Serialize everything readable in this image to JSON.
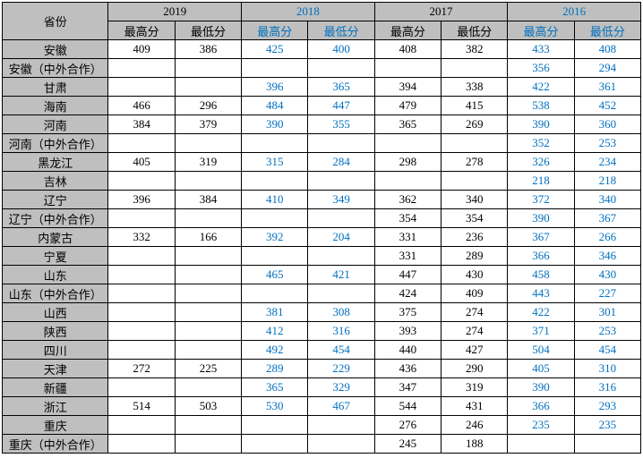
{
  "headers": {
    "province": "省份",
    "years": [
      "2019",
      "2018",
      "2017",
      "2016"
    ],
    "sub": [
      "最高分",
      "最低分"
    ],
    "blue_years": [
      1,
      3
    ]
  },
  "rows": [
    {
      "label": "安徽",
      "cells": [
        "409",
        "386",
        "425",
        "400",
        "408",
        "382",
        "433",
        "408"
      ]
    },
    {
      "label": "安徽（中外合作）",
      "cells": [
        "",
        "",
        "",
        "",
        "",
        "",
        "356",
        "294"
      ]
    },
    {
      "label": "甘肃",
      "cells": [
        "",
        "",
        "396",
        "365",
        "394",
        "338",
        "422",
        "361"
      ]
    },
    {
      "label": "海南",
      "cells": [
        "466",
        "296",
        "484",
        "447",
        "479",
        "415",
        "538",
        "452"
      ]
    },
    {
      "label": "河南",
      "cells": [
        "384",
        "379",
        "390",
        "355",
        "365",
        "269",
        "390",
        "360"
      ]
    },
    {
      "label": "河南（中外合作）",
      "cells": [
        "",
        "",
        "",
        "",
        "",
        "",
        "352",
        "253"
      ]
    },
    {
      "label": "黑龙江",
      "cells": [
        "405",
        "319",
        "315",
        "284",
        "298",
        "278",
        "326",
        "234"
      ]
    },
    {
      "label": "吉林",
      "cells": [
        "",
        "",
        "",
        "",
        "",
        "",
        "218",
        "218"
      ]
    },
    {
      "label": "辽宁",
      "cells": [
        "396",
        "384",
        "410",
        "349",
        "362",
        "340",
        "372",
        "340"
      ]
    },
    {
      "label": "辽宁（中外合作）",
      "cells": [
        "",
        "",
        "",
        "",
        "354",
        "354",
        "390",
        "367"
      ]
    },
    {
      "label": "内蒙古",
      "cells": [
        "332",
        "166",
        "392",
        "204",
        "331",
        "236",
        "367",
        "266"
      ]
    },
    {
      "label": "宁夏",
      "cells": [
        "",
        "",
        "",
        "",
        "331",
        "289",
        "366",
        "346"
      ]
    },
    {
      "label": "山东",
      "cells": [
        "",
        "",
        "465",
        "421",
        "447",
        "430",
        "458",
        "430"
      ]
    },
    {
      "label": "山东（中外合作）",
      "cells": [
        "",
        "",
        "",
        "",
        "424",
        "409",
        "443",
        "227"
      ]
    },
    {
      "label": "山西",
      "cells": [
        "",
        "",
        "381",
        "308",
        "375",
        "274",
        "422",
        "301"
      ]
    },
    {
      "label": "陕西",
      "cells": [
        "",
        "",
        "412",
        "316",
        "393",
        "274",
        "371",
        "253"
      ]
    },
    {
      "label": "四川",
      "cells": [
        "",
        "",
        "492",
        "454",
        "440",
        "427",
        "504",
        "454"
      ]
    },
    {
      "label": "天津",
      "cells": [
        "272",
        "225",
        "289",
        "229",
        "436",
        "290",
        "405",
        "310"
      ]
    },
    {
      "label": "新疆",
      "cells": [
        "",
        "",
        "365",
        "329",
        "347",
        "319",
        "390",
        "316"
      ]
    },
    {
      "label": "浙江",
      "cells": [
        "514",
        "503",
        "530",
        "467",
        "544",
        "431",
        "366",
        "293"
      ]
    },
    {
      "label": "重庆",
      "cells": [
        "",
        "",
        "",
        "",
        "276",
        "246",
        "235",
        "235"
      ]
    },
    {
      "label": "重庆（中外合作）",
      "cells": [
        "",
        "",
        "",
        "",
        "245",
        "188",
        "",
        ""
      ]
    }
  ],
  "blue_cols": [
    2,
    3,
    6,
    7
  ]
}
